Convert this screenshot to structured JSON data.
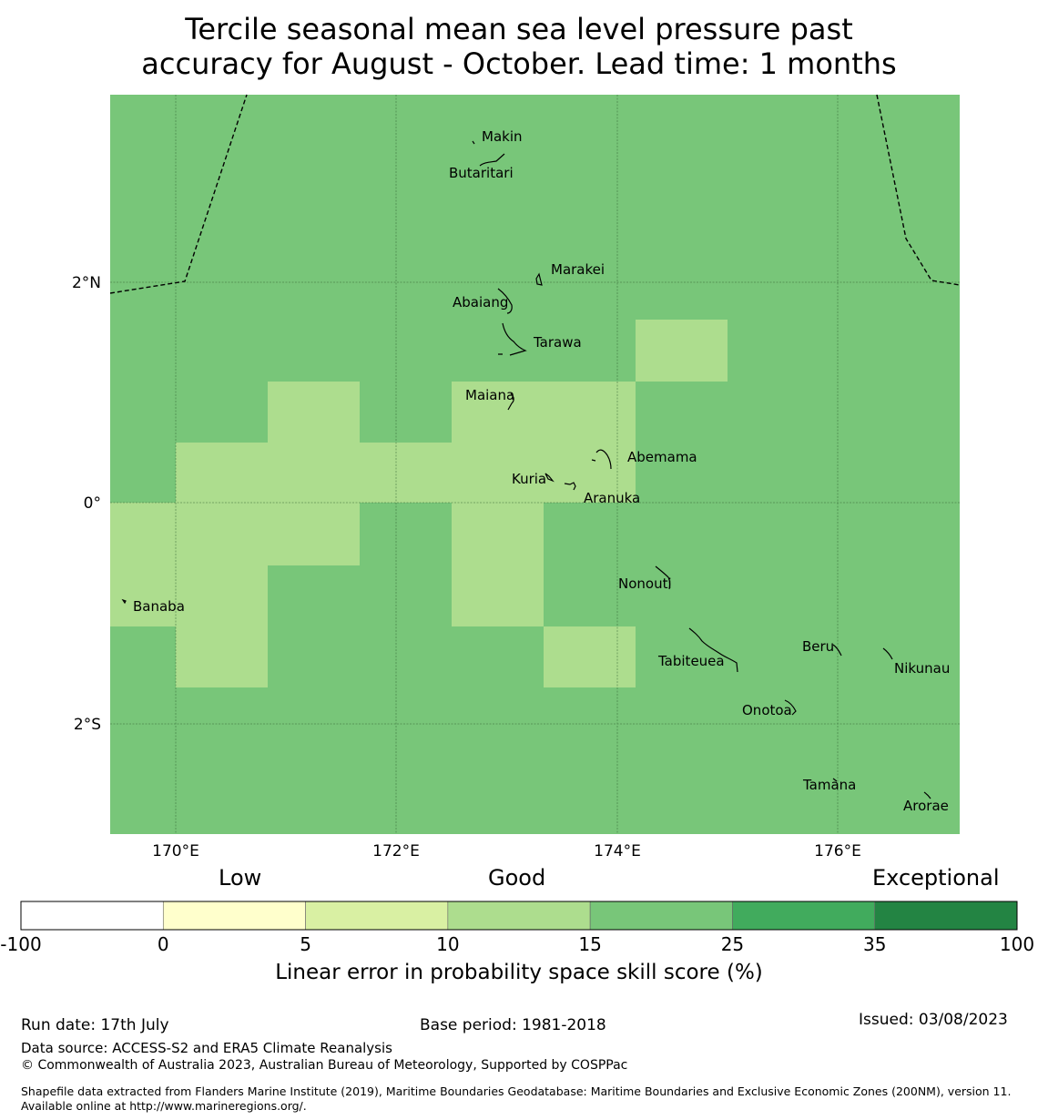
{
  "title": {
    "line1": "Tercile seasonal mean sea level pressure past",
    "line2": "accuracy for August - October. Lead time: 1 months"
  },
  "map": {
    "lat_labels": [
      "2°N",
      "0°",
      "2°S"
    ],
    "lon_labels": [
      "170°E",
      "172°E",
      "174°E",
      "176°E"
    ],
    "base_color": "#78c679",
    "place_labels": [
      {
        "name": "Makin"
      },
      {
        "name": "Butaritari"
      },
      {
        "name": "Marakei"
      },
      {
        "name": "Abaiang"
      },
      {
        "name": "Tarawa"
      },
      {
        "name": "Maiana"
      },
      {
        "name": "Abemama"
      },
      {
        "name": "Kuria"
      },
      {
        "name": "Aranuka"
      },
      {
        "name": "Nonouti"
      },
      {
        "name": "Banaba"
      },
      {
        "name": "Beru"
      },
      {
        "name": "Tabiteuea"
      },
      {
        "name": "Nikunau"
      },
      {
        "name": "Onotoa"
      },
      {
        "name": "Tamana"
      },
      {
        "name": "Arorae"
      }
    ],
    "skill_categories_shown": [
      "10-15",
      "15-25"
    ]
  },
  "legend": {
    "level_low": "Low",
    "level_good": "Good",
    "level_exceptional": "Exceptional",
    "ticks": [
      "-100",
      "0",
      "5",
      "10",
      "15",
      "25",
      "35",
      "100"
    ],
    "colors": [
      "#ffffff",
      "#ffffcc",
      "#d9f0a3",
      "#addd8e",
      "#78c679",
      "#41ab5d",
      "#238443"
    ],
    "xlabel": "Linear error in probability space skill score (%)"
  },
  "footer": {
    "run_date": "Run date: 17th July",
    "base_period": "Base period: 1981-2018",
    "issued": "Issued: 03/08/2023",
    "data_source": "Data source: ACCESS-S2 and ERA5 Climate Reanalysis",
    "copyright": "© Commonwealth of Australia 2023, Australian Bureau of Meteorology, Supported by COSPPac",
    "shapefile": "Shapefile data extracted from Flanders Marine Institute (2019), Maritime Boundaries Geodatabase: Maritime Boundaries and Exclusive Economic Zones (200NM), version 11. Available online at http://www.marineregions.org/."
  }
}
